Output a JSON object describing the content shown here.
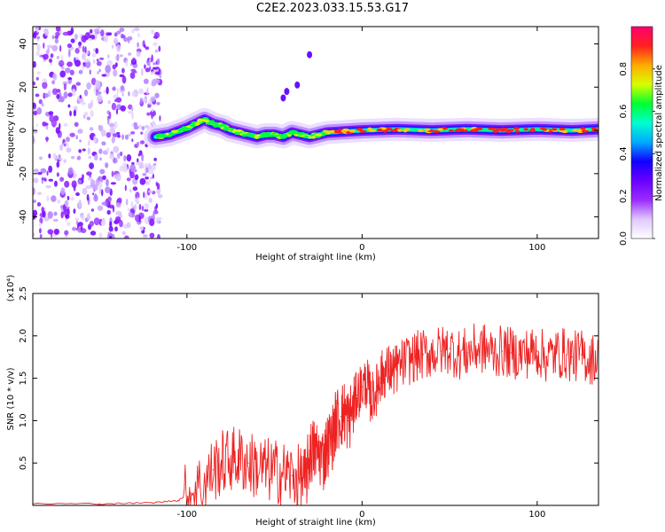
{
  "chart_data": [
    {
      "type": "heatmap",
      "title": "C2E2.2023.033.15.53.G17",
      "xlabel": "Height of straight line (km)",
      "ylabel": "Frequency (Hz)",
      "xlim": [
        -188,
        135
      ],
      "ylim": [
        -50,
        48
      ],
      "x_ticks": [
        -100,
        0,
        100
      ],
      "y_ticks": [
        -40,
        -20,
        0,
        20,
        40
      ],
      "colorbar": {
        "label": "Normalized spectral amplitude",
        "range": [
          0.0,
          1.0
        ],
        "ticks": [
          "0.0",
          "0.2",
          "0.4",
          "0.6",
          "0.8"
        ],
        "colormap": [
          "#ffffff",
          "#e0c8ff",
          "#9a2cff",
          "#6a00ff",
          "#1200ff",
          "#00aaff",
          "#00ffd0",
          "#00ff30",
          "#d8ff00",
          "#ffaa00",
          "#ff2020",
          "#ff0070"
        ]
      },
      "ridge": {
        "x": [
          -118,
          -110,
          -100,
          -95,
          -90,
          -85,
          -80,
          -75,
          -70,
          -65,
          -60,
          -55,
          -50,
          -45,
          -40,
          -35,
          -30,
          -25,
          -20,
          -10,
          0,
          20,
          40,
          60,
          80,
          100,
          120,
          135
        ],
        "y": [
          -3,
          -2,
          1,
          3,
          5,
          3,
          2,
          0,
          -1,
          -2,
          -3,
          -2,
          -2,
          -3,
          -1,
          -2,
          -3,
          -2,
          -1,
          -0.5,
          0,
          0.5,
          0,
          0.5,
          0,
          0.5,
          0,
          0.5
        ]
      },
      "noise_region_x": [
        -188,
        -115
      ],
      "scatter_points": [
        {
          "x": -45,
          "y": 15
        },
        {
          "x": -43,
          "y": 18
        },
        {
          "x": -37,
          "y": 21
        },
        {
          "x": -30,
          "y": 35
        }
      ]
    },
    {
      "type": "line",
      "xlabel": "Height of straight line (km)",
      "ylabel": "SNR (10 * v/v)",
      "y_multiplier": "(x10⁴)",
      "xlim": [
        -188,
        135
      ],
      "ylim": [
        0,
        2.5
      ],
      "x_ticks": [
        -100,
        0,
        100
      ],
      "y_ticks": [
        0.5,
        1.0,
        1.5,
        2.0,
        2.5
      ],
      "series": [
        {
          "color": "#ee2222",
          "x": [
            -188,
            -150,
            -120,
            -105,
            -98,
            -90,
            -85,
            -80,
            -75,
            -70,
            -65,
            -60,
            -55,
            -50,
            -45,
            -40,
            -35,
            -32,
            -30,
            -28,
            -25,
            -22,
            -20,
            -17,
            -15,
            -12,
            -10,
            -8,
            -5,
            -3,
            0,
            3,
            5,
            8,
            10,
            12,
            15,
            18,
            20,
            25,
            30,
            35,
            40,
            45,
            50,
            55,
            60,
            65,
            70,
            75,
            80,
            85,
            90,
            95,
            100,
            105,
            110,
            115,
            120,
            125,
            130,
            135
          ],
          "y": [
            0.02,
            0.02,
            0.03,
            0.06,
            0.15,
            0.28,
            0.42,
            0.5,
            0.55,
            0.55,
            0.5,
            0.45,
            0.42,
            0.4,
            0.38,
            0.35,
            0.32,
            0.3,
            0.6,
            0.65,
            0.62,
            0.55,
            0.7,
            0.8,
            1.0,
            1.05,
            1.1,
            1.0,
            1.15,
            1.3,
            1.4,
            1.45,
            1.25,
            1.35,
            1.5,
            1.55,
            1.6,
            1.58,
            1.62,
            1.7,
            1.75,
            1.78,
            1.8,
            1.82,
            1.85,
            1.78,
            1.8,
            1.85,
            1.85,
            1.8,
            1.82,
            1.8,
            1.78,
            1.8,
            1.82,
            1.75,
            1.78,
            1.8,
            1.75,
            1.78,
            1.72,
            1.75
          ]
        }
      ]
    }
  ]
}
